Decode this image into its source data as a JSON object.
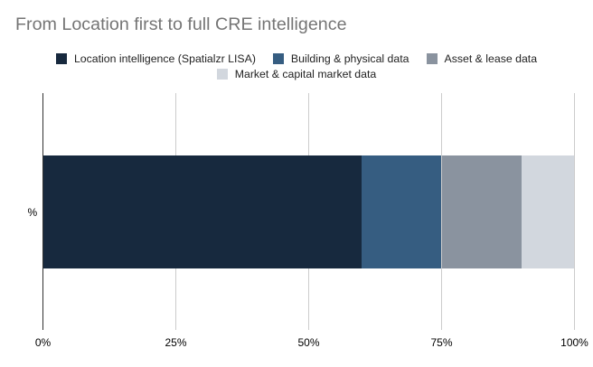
{
  "title": "From Location first to full CRE intelligence",
  "y_axis_title": "%",
  "colors": {
    "background": "#ffffff",
    "title_text": "#757575",
    "legend_text": "#222222",
    "axis_text": "#000000",
    "gridline": "#cccccc",
    "axis_line": "#333333"
  },
  "chart_data": {
    "type": "bar",
    "stacked": true,
    "orientation": "horizontal",
    "title": "From Location first to full CRE intelligence",
    "xlabel": "",
    "ylabel": "%",
    "categories": [
      "%"
    ],
    "series": [
      {
        "name": "Location intelligence (Spatialzr LISA)",
        "values": [
          60
        ],
        "color": "#17293E"
      },
      {
        "name": "Building & physical data",
        "values": [
          15
        ],
        "color": "#365D81"
      },
      {
        "name": "Asset & lease data",
        "values": [
          15
        ],
        "color": "#8A939F"
      },
      {
        "name": "Market & capital market data",
        "values": [
          10
        ],
        "color": "#D2D7DE"
      }
    ],
    "xlim": [
      0,
      100
    ],
    "x_ticks": [
      {
        "value": 0,
        "label": "0%"
      },
      {
        "value": 25,
        "label": "25%"
      },
      {
        "value": 50,
        "label": "50%"
      },
      {
        "value": 75,
        "label": "75%"
      },
      {
        "value": 100,
        "label": "100%"
      }
    ],
    "legend_position": "top",
    "grid": true
  }
}
